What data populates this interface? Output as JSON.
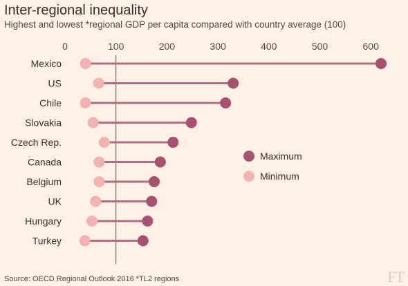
{
  "title": "Inter-regional inequality",
  "subtitle": "Highest and lowest *regional GDP per capita compared with country average (100)",
  "source": "Source: OECD Regional Outlook 2016   *TL2 regions",
  "logo": "FT",
  "colors": {
    "background": "#fff1e5",
    "maximum": "#a8506f",
    "minimum": "#f3b2b0",
    "connector": "#b36a82",
    "reference_line": "#4d4845",
    "tick_text": "#4d4845"
  },
  "chart_data": {
    "type": "dumbbell",
    "categories": [
      "Mexico",
      "US",
      "Chile",
      "Slovakia",
      "Czech Rep.",
      "Canada",
      "Belgium",
      "UK",
      "Hungary",
      "Turkey"
    ],
    "series": [
      {
        "name": "Maximum",
        "values": [
          620,
          330,
          315,
          248,
          212,
          187,
          175,
          170,
          162,
          153
        ]
      },
      {
        "name": "Minimum",
        "values": [
          40,
          66,
          40,
          55,
          77,
          67,
          67,
          60,
          53,
          39
        ]
      }
    ],
    "x_ticks": [
      "0",
      "100",
      "200",
      "300",
      "400",
      "500",
      "600"
    ],
    "xlim": [
      0,
      630
    ],
    "reference_value": 100,
    "legend_position": "right-center"
  }
}
